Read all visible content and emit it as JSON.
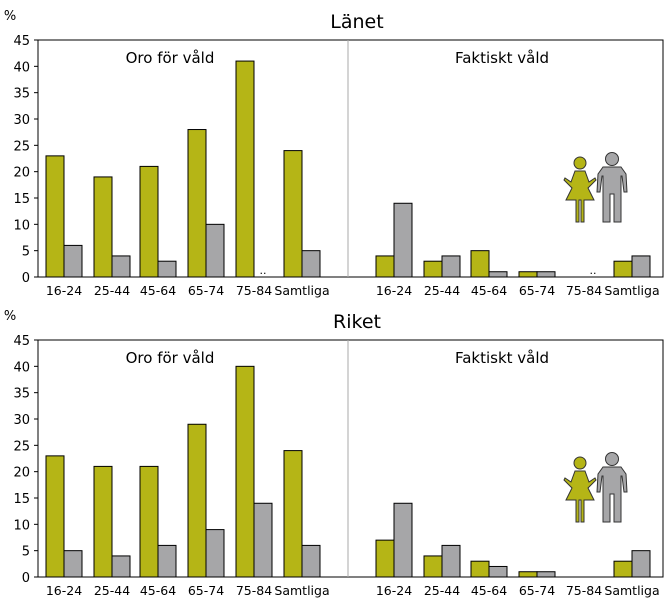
{
  "colors": {
    "women": "#b5b516",
    "men": "#a6a6a8",
    "axis": "#000000",
    "divider": "#aaaaaa"
  },
  "icons": [
    "woman-icon",
    "man-icon"
  ],
  "chart_data": [
    {
      "type": "bar",
      "title": "Länet",
      "ylabel": "%",
      "ylim": [
        0,
        45
      ],
      "yticks": [
        "0",
        "5",
        "10",
        "15",
        "20",
        "25",
        "30",
        "35",
        "40",
        "45"
      ],
      "grid": false,
      "panels": [
        {
          "title": "Oro för våld",
          "categories": [
            "16-24",
            "25-44",
            "45-64",
            "65-74",
            "75-84",
            "Samtliga"
          ],
          "series": [
            {
              "values": [
                23,
                19,
                21,
                28,
                41,
                24
              ]
            },
            {
              "values": [
                6,
                4,
                3,
                10,
                null,
                5
              ]
            }
          ],
          "missing_label": ".."
        },
        {
          "title": "Faktiskt våld",
          "categories": [
            "16-24",
            "25-44",
            "45-64",
            "65-74",
            "75-84",
            "Samtliga"
          ],
          "series": [
            {
              "values": [
                4,
                3,
                5,
                1,
                null,
                3
              ]
            },
            {
              "values": [
                14,
                4,
                1,
                1,
                null,
                4
              ]
            }
          ],
          "missing_label": ".."
        }
      ]
    },
    {
      "type": "bar",
      "title": "Riket",
      "ylabel": "%",
      "ylim": [
        0,
        45
      ],
      "yticks": [
        "0",
        "5",
        "10",
        "15",
        "20",
        "25",
        "30",
        "35",
        "40",
        "45"
      ],
      "grid": false,
      "panels": [
        {
          "title": "Oro för våld",
          "categories": [
            "16-24",
            "25-44",
            "45-64",
            "65-74",
            "75-84",
            "Samtliga"
          ],
          "series": [
            {
              "values": [
                23,
                21,
                21,
                29,
                40,
                24
              ]
            },
            {
              "values": [
                5,
                4,
                6,
                9,
                14,
                6
              ]
            }
          ]
        },
        {
          "title": "Faktiskt våld",
          "categories": [
            "16-24",
            "25-44",
            "45-64",
            "65-74",
            "75-84",
            "Samtliga"
          ],
          "series": [
            {
              "values": [
                7,
                4,
                3,
                1,
                0,
                3
              ]
            },
            {
              "values": [
                14,
                6,
                2,
                1,
                0,
                5
              ]
            }
          ]
        }
      ]
    }
  ]
}
